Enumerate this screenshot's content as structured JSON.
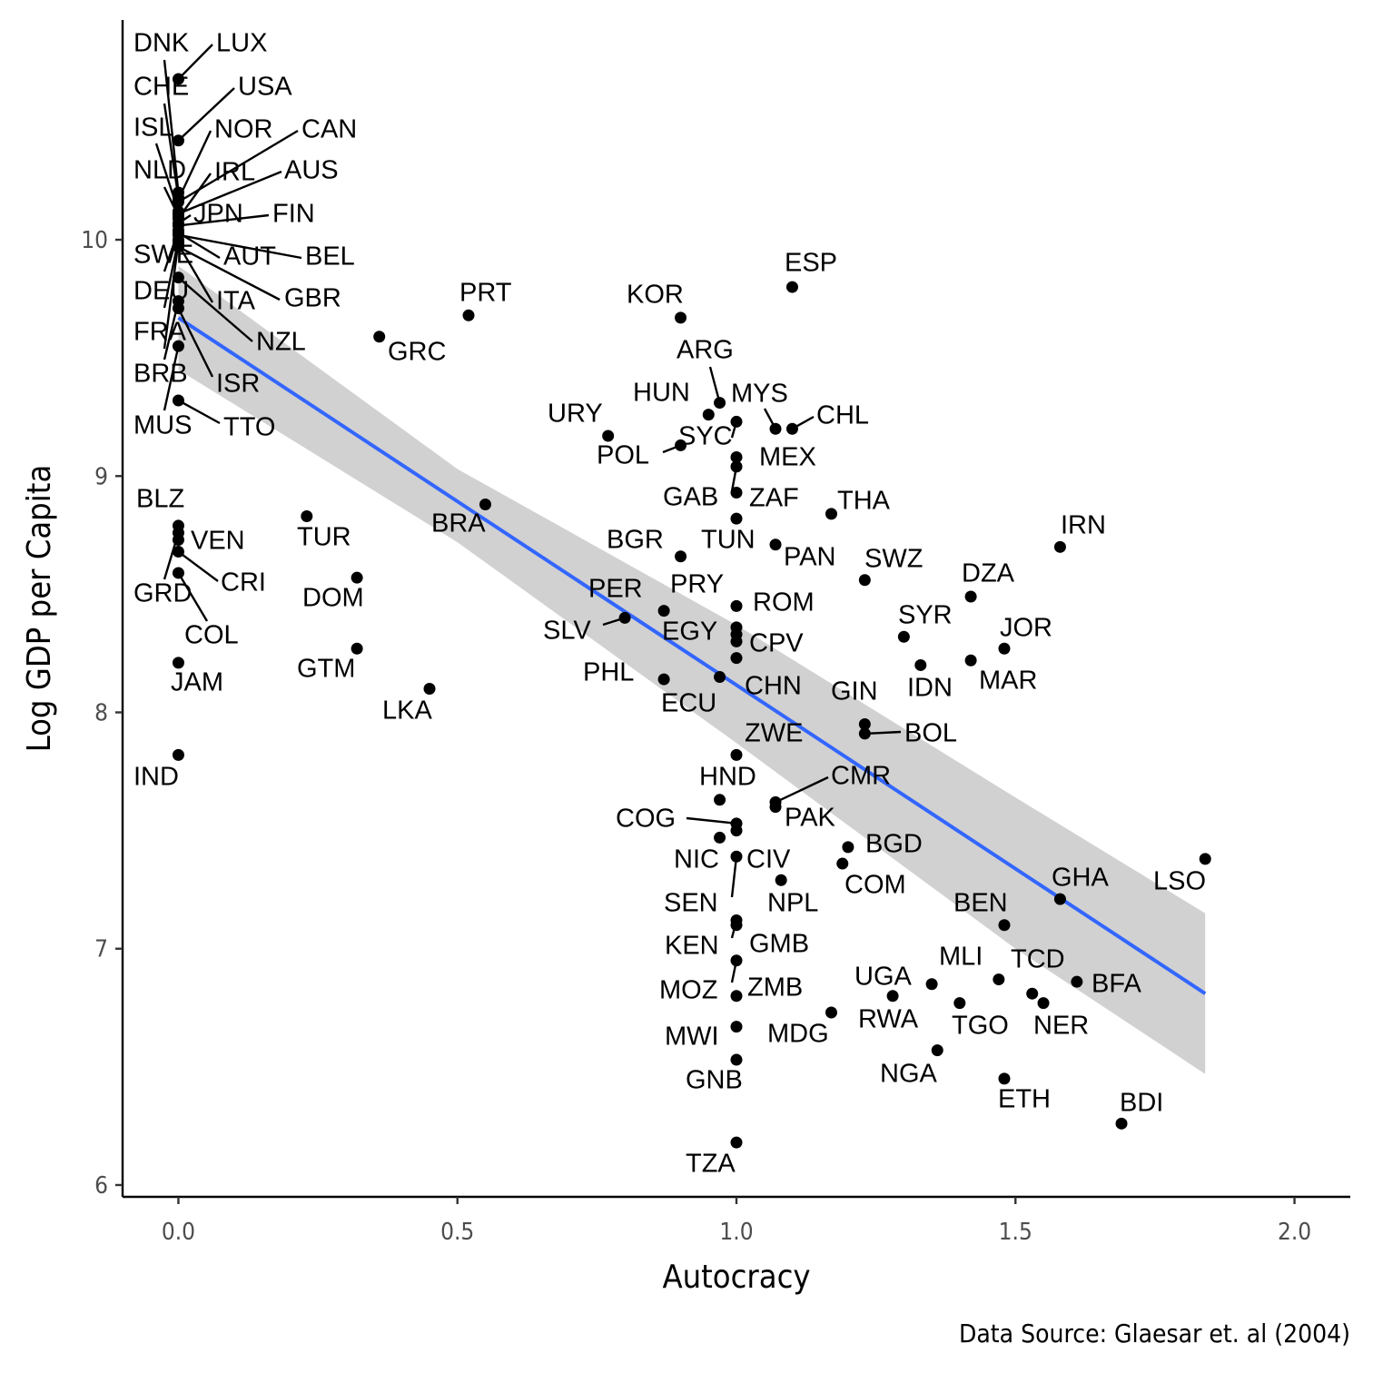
{
  "chart_data": {
    "type": "scatter",
    "title": "",
    "xlabel": "Autocracy",
    "ylabel": "Log GDP per Capita",
    "caption": "Data Source: Glaesar et. al (2004)",
    "xlim": [
      -0.1,
      2.1
    ],
    "ylim": [
      5.95,
      10.93
    ],
    "x_ticks": [
      0.0,
      0.5,
      1.0,
      1.5,
      2.0
    ],
    "x_tick_labels": [
      "0.0",
      "0.5",
      "1.0",
      "1.5",
      "2.0"
    ],
    "y_ticks": [
      6,
      7,
      8,
      9,
      10
    ],
    "y_tick_labels": [
      "6",
      "7",
      "8",
      "9",
      "10"
    ],
    "grid": false,
    "fit_line": {
      "x": [
        0.0,
        1.84
      ],
      "y": [
        9.67,
        6.81
      ],
      "color": "#3366FF"
    },
    "confidence_band": {
      "x": [
        0.0,
        0.5,
        1.0,
        1.5,
        1.84
      ],
      "lower": [
        9.45,
        8.72,
        7.87,
        7.0,
        6.47
      ],
      "upper": [
        9.89,
        9.03,
        8.37,
        7.64,
        7.15
      ],
      "color": "#cccccc"
    },
    "points": [
      {
        "code": "LUX",
        "x": 0.0,
        "y": 10.68
      },
      {
        "code": "USA",
        "x": 0.0,
        "y": 10.42
      },
      {
        "code": "DNK",
        "x": 0.0,
        "y": 10.2
      },
      {
        "code": "CHE",
        "x": 0.0,
        "y": 10.18
      },
      {
        "code": "ISL",
        "x": 0.0,
        "y": 10.12
      },
      {
        "code": "NOR",
        "x": 0.0,
        "y": 10.17
      },
      {
        "code": "CAN",
        "x": 0.0,
        "y": 10.16
      },
      {
        "code": "NLD",
        "x": 0.0,
        "y": 10.1
      },
      {
        "code": "IRL",
        "x": 0.0,
        "y": 10.09
      },
      {
        "code": "AUS",
        "x": 0.0,
        "y": 10.11
      },
      {
        "code": "JPN",
        "x": 0.0,
        "y": 10.07
      },
      {
        "code": "FIN",
        "x": 0.0,
        "y": 10.06
      },
      {
        "code": "SWE",
        "x": 0.0,
        "y": 10.04
      },
      {
        "code": "AUT",
        "x": 0.0,
        "y": 10.03
      },
      {
        "code": "BEL",
        "x": 0.0,
        "y": 10.02
      },
      {
        "code": "DEU",
        "x": 0.0,
        "y": 10.0
      },
      {
        "code": "ITA",
        "x": 0.0,
        "y": 9.98
      },
      {
        "code": "GBR",
        "x": 0.0,
        "y": 9.97
      },
      {
        "code": "FRA",
        "x": 0.0,
        "y": 9.99
      },
      {
        "code": "NZL",
        "x": 0.0,
        "y": 9.84
      },
      {
        "code": "BRB",
        "x": 0.0,
        "y": 9.74
      },
      {
        "code": "ISR",
        "x": 0.0,
        "y": 9.71
      },
      {
        "code": "MUS",
        "x": 0.0,
        "y": 9.55
      },
      {
        "code": "TTO",
        "x": 0.0,
        "y": 9.32
      },
      {
        "code": "BLZ",
        "x": 0.0,
        "y": 8.79
      },
      {
        "code": "VEN",
        "x": 0.0,
        "y": 8.73
      },
      {
        "code": "GRD",
        "x": 0.0,
        "y": 8.76
      },
      {
        "code": "CRI",
        "x": 0.0,
        "y": 8.68
      },
      {
        "code": "COL",
        "x": 0.0,
        "y": 8.59
      },
      {
        "code": "JAM",
        "x": 0.0,
        "y": 8.21
      },
      {
        "code": "IND",
        "x": 0.0,
        "y": 7.82
      },
      {
        "code": "TUR",
        "x": 0.23,
        "y": 8.83
      },
      {
        "code": "DOM",
        "x": 0.32,
        "y": 8.57
      },
      {
        "code": "GTM",
        "x": 0.32,
        "y": 8.27
      },
      {
        "code": "GRC",
        "x": 0.36,
        "y": 9.59
      },
      {
        "code": "LKA",
        "x": 0.45,
        "y": 8.1
      },
      {
        "code": "PRT",
        "x": 0.52,
        "y": 9.68
      },
      {
        "code": "BRA",
        "x": 0.55,
        "y": 8.88
      },
      {
        "code": "URY",
        "x": 0.77,
        "y": 9.17
      },
      {
        "code": "SLV",
        "x": 0.8,
        "y": 8.4
      },
      {
        "code": "PER",
        "x": 0.87,
        "y": 8.43
      },
      {
        "code": "PHL",
        "x": 0.87,
        "y": 8.14
      },
      {
        "code": "POL",
        "x": 0.9,
        "y": 9.13
      },
      {
        "code": "BGR",
        "x": 0.9,
        "y": 8.66
      },
      {
        "code": "KOR",
        "x": 0.9,
        "y": 9.67
      },
      {
        "code": "HUN",
        "x": 0.95,
        "y": 9.26
      },
      {
        "code": "ARG",
        "x": 0.97,
        "y": 9.31
      },
      {
        "code": "ECU",
        "x": 0.97,
        "y": 8.15
      },
      {
        "code": "HND",
        "x": 0.97,
        "y": 7.63
      },
      {
        "code": "NIC",
        "x": 0.97,
        "y": 7.47
      },
      {
        "code": "SYC",
        "x": 1.0,
        "y": 9.23
      },
      {
        "code": "MEX",
        "x": 1.0,
        "y": 9.08
      },
      {
        "code": "GAB",
        "x": 1.0,
        "y": 9.04
      },
      {
        "code": "ZAF",
        "x": 1.0,
        "y": 8.93
      },
      {
        "code": "TUN",
        "x": 1.0,
        "y": 8.82
      },
      {
        "code": "PRY",
        "x": 1.0,
        "y": 8.45
      },
      {
        "code": "ROM",
        "x": 1.0,
        "y": 8.36
      },
      {
        "code": "EGY",
        "x": 1.0,
        "y": 8.33
      },
      {
        "code": "CPV",
        "x": 1.0,
        "y": 8.3
      },
      {
        "code": "CHN",
        "x": 1.0,
        "y": 8.23
      },
      {
        "code": "ZWE",
        "x": 1.0,
        "y": 7.82
      },
      {
        "code": "COG",
        "x": 1.0,
        "y": 7.53
      },
      {
        "code": "CIV",
        "x": 1.0,
        "y": 7.5
      },
      {
        "code": "SEN",
        "x": 1.0,
        "y": 7.39
      },
      {
        "code": "KEN",
        "x": 1.0,
        "y": 7.12
      },
      {
        "code": "GMB",
        "x": 1.0,
        "y": 7.1
      },
      {
        "code": "MOZ",
        "x": 1.0,
        "y": 6.95
      },
      {
        "code": "ZMB",
        "x": 1.0,
        "y": 6.8
      },
      {
        "code": "MWI",
        "x": 1.0,
        "y": 6.67
      },
      {
        "code": "GNB",
        "x": 1.0,
        "y": 6.53
      },
      {
        "code": "TZA",
        "x": 1.0,
        "y": 6.18
      },
      {
        "code": "MYS",
        "x": 1.07,
        "y": 9.2
      },
      {
        "code": "PAN",
        "x": 1.07,
        "y": 8.71
      },
      {
        "code": "PAK",
        "x": 1.07,
        "y": 7.6
      },
      {
        "code": "CMR",
        "x": 1.07,
        "y": 7.62
      },
      {
        "code": "CHL",
        "x": 1.1,
        "y": 9.2
      },
      {
        "code": "ESP",
        "x": 1.1,
        "y": 9.8
      },
      {
        "code": "NPL",
        "x": 1.08,
        "y": 7.29
      },
      {
        "code": "THA",
        "x": 1.17,
        "y": 8.84
      },
      {
        "code": "MDG",
        "x": 1.17,
        "y": 6.73
      },
      {
        "code": "COM",
        "x": 1.19,
        "y": 7.36
      },
      {
        "code": "BGD",
        "x": 1.2,
        "y": 7.43
      },
      {
        "code": "SWZ",
        "x": 1.23,
        "y": 8.56
      },
      {
        "code": "GIN",
        "x": 1.23,
        "y": 7.95
      },
      {
        "code": "BOL",
        "x": 1.23,
        "y": 7.91
      },
      {
        "code": "RWA",
        "x": 1.28,
        "y": 6.8
      },
      {
        "code": "SYR",
        "x": 1.3,
        "y": 8.32
      },
      {
        "code": "IDN",
        "x": 1.33,
        "y": 8.2
      },
      {
        "code": "UGA",
        "x": 1.35,
        "y": 6.85
      },
      {
        "code": "NGA",
        "x": 1.36,
        "y": 6.57
      },
      {
        "code": "TGO",
        "x": 1.4,
        "y": 6.77
      },
      {
        "code": "DZA",
        "x": 1.42,
        "y": 8.49
      },
      {
        "code": "MAR",
        "x": 1.42,
        "y": 8.22
      },
      {
        "code": "MLI",
        "x": 1.47,
        "y": 6.87
      },
      {
        "code": "JOR",
        "x": 1.48,
        "y": 8.27
      },
      {
        "code": "BEN",
        "x": 1.48,
        "y": 7.1
      },
      {
        "code": "ETH",
        "x": 1.48,
        "y": 6.45
      },
      {
        "code": "TCD",
        "x": 1.53,
        "y": 6.81
      },
      {
        "code": "NER",
        "x": 1.55,
        "y": 6.77
      },
      {
        "code": "IRN",
        "x": 1.58,
        "y": 8.7
      },
      {
        "code": "GHA",
        "x": 1.58,
        "y": 7.21
      },
      {
        "code": "BFA",
        "x": 1.61,
        "y": 6.86
      },
      {
        "code": "BDI",
        "x": 1.69,
        "y": 6.26
      },
      {
        "code": "LSO",
        "x": 1.84,
        "y": 7.38
      }
    ]
  }
}
